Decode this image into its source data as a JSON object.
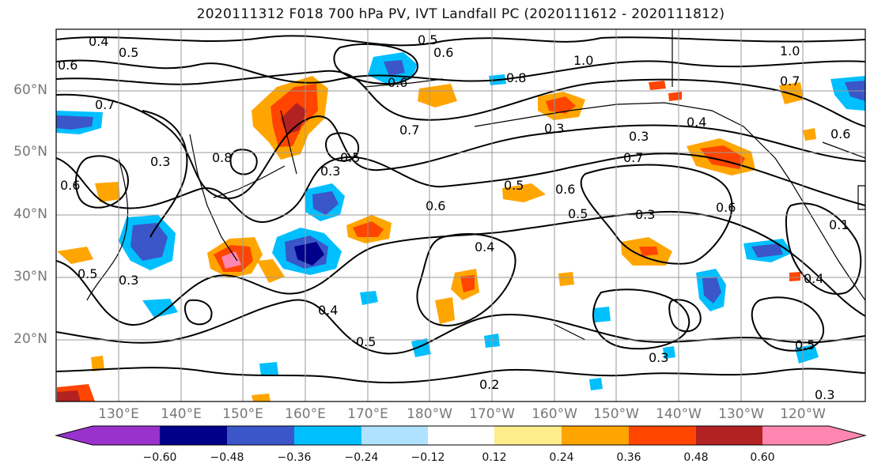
{
  "title": "2020111312 F018 700 hPa PV, IVT Landfall PC (2020111612 - 2020111812)",
  "lat_labels": [
    "60°N",
    "50°N",
    "40°N",
    "30°N",
    "20°N"
  ],
  "lon_labels": [
    "130°E",
    "140°E",
    "150°E",
    "160°E",
    "170°E",
    "180°W",
    "170°W",
    "160°W",
    "150°W",
    "140°W",
    "130°W",
    "120°W"
  ],
  "contour_labels": [
    "0.4",
    "0.5",
    "0.6",
    "0.5",
    "0.6",
    "1.0",
    "0.8",
    "0.6",
    "0.7",
    "0.5",
    "0.3",
    "0.3",
    "0.8",
    "0.6",
    "0.7",
    "0.4",
    "0.3",
    "0.7",
    "0.6",
    "0.5",
    "0.3",
    "0.4",
    "0.6",
    "0.5",
    "0.3",
    "0.6",
    "0.4",
    "0.4",
    "0.5",
    "0.3",
    "0.2",
    "0.5",
    "0.3",
    "0.1",
    "0.3",
    "0.6",
    "1.0",
    "0.7",
    "0.5"
  ],
  "colorbar": {
    "colors": [
      "#9932cc",
      "#00008b",
      "#3a56c8",
      "#00bfff",
      "#b0e2ff",
      "#ffffff",
      "#ffec8b",
      "#ffa500",
      "#ff4500",
      "#b22222",
      "#ff86b0"
    ],
    "tick_labels": [
      "−0.60",
      "−0.48",
      "−0.36",
      "−0.24",
      "−0.12",
      "0.12",
      "0.24",
      "0.36",
      "0.48",
      "0.60"
    ]
  }
}
